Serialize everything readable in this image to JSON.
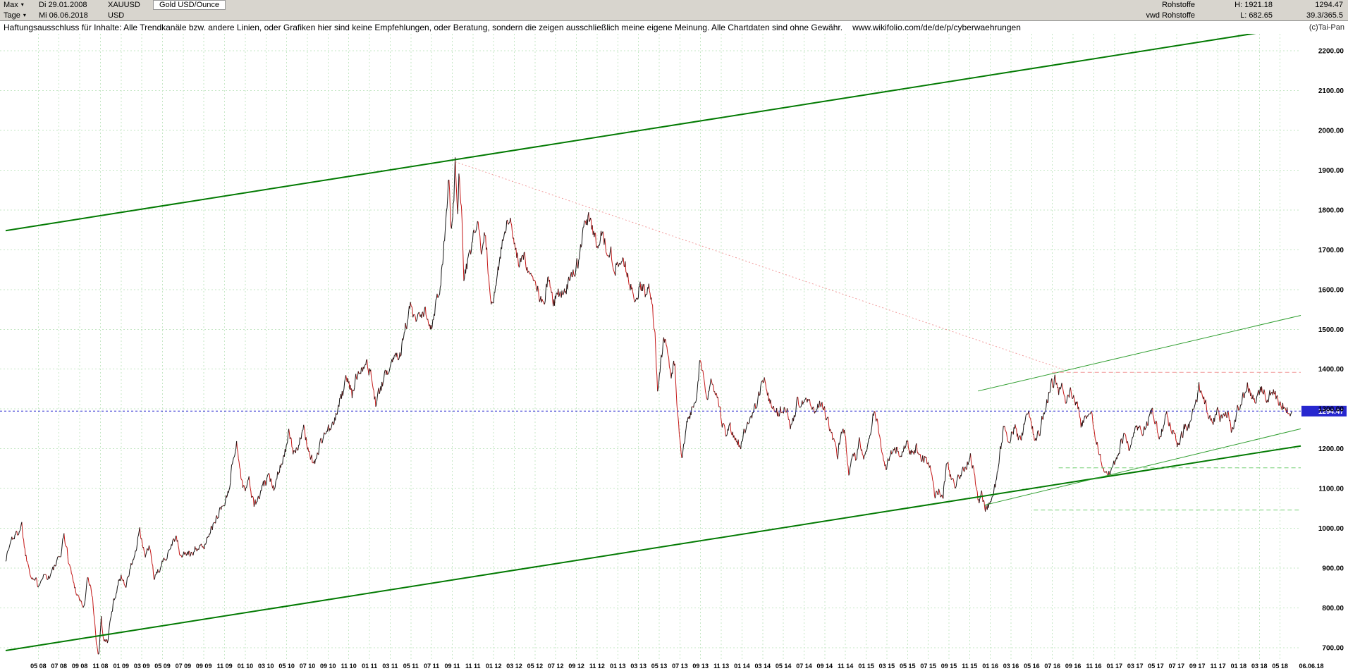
{
  "header": {
    "left": {
      "range_label": "Max",
      "period_label": "Tage",
      "date_from": "Di 29.01.2008",
      "date_to": "Mi 06.06.2018",
      "symbol": "XAUUSD",
      "currency": "USD",
      "instrument_name": "Gold USD/Ounce"
    },
    "right": {
      "category": "Rohstoffe",
      "source": "vwd Rohstoffe",
      "high_label": "H: 1921.18",
      "low_label": "L: 682.65",
      "last_price": "1294.47",
      "stat": "39.3/365.5"
    },
    "copyright": "(c)Tai-Pan"
  },
  "disclaimer": {
    "text": "Haftungsausschluss für Inhalte: Alle Trendkanäle bzw. andere Linien, oder Grafiken hier sind keine Empfehlungen, oder Beratung, sondern die zeigen ausschließlich meine eigene Meinung. Alle Chartdaten sind ohne Gewähr.",
    "url": "www.wikifolio.com/de/de/p/cyberwaehrungen"
  },
  "chart_data": {
    "type": "line",
    "title": "XAUUSD Gold USD/Ounce, Tageschart Max (29.01.2008 - 06.06.2018)",
    "xlabel": "",
    "ylabel": "USD",
    "grid": true,
    "x_range": [
      2008.07,
      2018.5
    ],
    "y_range": [
      670,
      2242
    ],
    "y_ticks": [
      700,
      800,
      900,
      1000,
      1100,
      1200,
      1300,
      1400,
      1500,
      1600,
      1700,
      1800,
      1900,
      2000,
      2100,
      2200
    ],
    "x_tick_labels": [
      "05 08",
      "07 08",
      "09 08",
      "11 08",
      "01 09",
      "03 09",
      "05 09",
      "07 09",
      "09 09",
      "11 09",
      "01 10",
      "03 10",
      "05 10",
      "07 10",
      "09 10",
      "11 10",
      "01 11",
      "03 11",
      "05 11",
      "07 11",
      "09 11",
      "11 11",
      "01 12",
      "03 12",
      "05 12",
      "07 12",
      "09 12",
      "11 12",
      "01 13",
      "03 13",
      "05 13",
      "07 13",
      "09 13",
      "11 13",
      "01 14",
      "03 14",
      "05 14",
      "07 14",
      "09 14",
      "11 14",
      "01 15",
      "03 15",
      "05 15",
      "07 15",
      "09 15",
      "11 15",
      "01 16",
      "03 16",
      "05 16",
      "07 16",
      "09 16",
      "11 16",
      "01 17",
      "03 17",
      "05 17",
      "07 17",
      "09 17",
      "11 17",
      "01 18",
      "03 18",
      "05 18",
      "06.06.18"
    ],
    "high": 1921.18,
    "low": 682.65,
    "current_price": 1294.47,
    "current_price_label": "1294.47",
    "colors": {
      "up": "#151515",
      "down": "#c41616",
      "grid": "#c5e7c5",
      "channel": "#027a02",
      "wedge": "#2f9e2f",
      "downtrend": "#f29b9b",
      "support": "#73cf73",
      "current": "#2727cf"
    },
    "trend_lines": [
      {
        "name": "channel-upper",
        "from": [
          2008.07,
          1748
        ],
        "to": [
          2018.5,
          2262
        ],
        "color_key": "channel",
        "width": 2
      },
      {
        "name": "channel-lower",
        "from": [
          2008.07,
          693
        ],
        "to": [
          2018.5,
          1207
        ],
        "color_key": "channel",
        "width": 2
      },
      {
        "name": "wedge-upper",
        "from": [
          2015.9,
          1345
        ],
        "to": [
          2018.5,
          1535
        ],
        "color_key": "wedge",
        "width": 1
      },
      {
        "name": "wedge-lower",
        "from": [
          2015.95,
          1058
        ],
        "to": [
          2018.5,
          1250
        ],
        "color_key": "wedge",
        "width": 1
      },
      {
        "name": "downtrend-dotted",
        "from": [
          2011.69,
          1921
        ],
        "to": [
          2016.6,
          1398
        ],
        "color_key": "downtrend",
        "width": 1,
        "dash": "2,3"
      },
      {
        "name": "resistance-dashed",
        "from": [
          2016.5,
          1392
        ],
        "to": [
          2018.5,
          1392
        ],
        "color_key": "downtrend",
        "width": 1,
        "dash": "6,4"
      },
      {
        "name": "support-dashed-1",
        "from": [
          2016.55,
          1152
        ],
        "to": [
          2018.5,
          1152
        ],
        "color_key": "support",
        "width": 1,
        "dash": "6,4"
      },
      {
        "name": "support-dashed-2",
        "from": [
          2016.35,
          1046
        ],
        "to": [
          2018.5,
          1046
        ],
        "color_key": "support",
        "width": 1,
        "dash": "6,4"
      }
    ],
    "series_points": [
      [
        2008.07,
        923
      ],
      [
        2008.12,
        975
      ],
      [
        2008.16,
        985
      ],
      [
        2008.2,
        1010
      ],
      [
        2008.23,
        935
      ],
      [
        2008.28,
        880
      ],
      [
        2008.33,
        860
      ],
      [
        2008.37,
        885
      ],
      [
        2008.42,
        878
      ],
      [
        2008.46,
        900
      ],
      [
        2008.51,
        930
      ],
      [
        2008.54,
        985
      ],
      [
        2008.58,
        915
      ],
      [
        2008.62,
        860
      ],
      [
        2008.65,
        833
      ],
      [
        2008.7,
        800
      ],
      [
        2008.73,
        875
      ],
      [
        2008.77,
        830
      ],
      [
        2008.8,
        715
      ],
      [
        2008.82,
        684
      ],
      [
        2008.84,
        775
      ],
      [
        2008.86,
        720
      ],
      [
        2008.89,
        713
      ],
      [
        2008.91,
        760
      ],
      [
        2008.94,
        815
      ],
      [
        2008.97,
        855
      ],
      [
        2009.0,
        880
      ],
      [
        2009.04,
        858
      ],
      [
        2009.08,
        905
      ],
      [
        2009.12,
        942
      ],
      [
        2009.15,
        992
      ],
      [
        2009.19,
        930
      ],
      [
        2009.23,
        952
      ],
      [
        2009.27,
        870
      ],
      [
        2009.32,
        905
      ],
      [
        2009.36,
        928
      ],
      [
        2009.4,
        958
      ],
      [
        2009.44,
        980
      ],
      [
        2009.48,
        928
      ],
      [
        2009.52,
        940
      ],
      [
        2009.56,
        932
      ],
      [
        2009.6,
        955
      ],
      [
        2009.64,
        948
      ],
      [
        2009.68,
        960
      ],
      [
        2009.71,
        995
      ],
      [
        2009.75,
        1008
      ],
      [
        2009.79,
        1045
      ],
      [
        2009.83,
        1060
      ],
      [
        2009.87,
        1105
      ],
      [
        2009.9,
        1170
      ],
      [
        2009.93,
        1218
      ],
      [
        2009.96,
        1140
      ],
      [
        2009.99,
        1095
      ],
      [
        2010.03,
        1120
      ],
      [
        2010.07,
        1058
      ],
      [
        2010.11,
        1075
      ],
      [
        2010.15,
        1110
      ],
      [
        2010.19,
        1125
      ],
      [
        2010.23,
        1105
      ],
      [
        2010.27,
        1150
      ],
      [
        2010.31,
        1180
      ],
      [
        2010.35,
        1235
      ],
      [
        2010.39,
        1188
      ],
      [
        2010.43,
        1215
      ],
      [
        2010.47,
        1245
      ],
      [
        2010.51,
        1200
      ],
      [
        2010.55,
        1160
      ],
      [
        2010.59,
        1195
      ],
      [
        2010.63,
        1235
      ],
      [
        2010.67,
        1248
      ],
      [
        2010.71,
        1255
      ],
      [
        2010.75,
        1310
      ],
      [
        2010.79,
        1345
      ],
      [
        2010.82,
        1380
      ],
      [
        2010.86,
        1335
      ],
      [
        2010.9,
        1385
      ],
      [
        2010.93,
        1405
      ],
      [
        2010.97,
        1420
      ],
      [
        2011.01,
        1388
      ],
      [
        2011.05,
        1315
      ],
      [
        2011.09,
        1350
      ],
      [
        2011.13,
        1385
      ],
      [
        2011.17,
        1420
      ],
      [
        2011.21,
        1435
      ],
      [
        2011.25,
        1445
      ],
      [
        2011.29,
        1505
      ],
      [
        2011.33,
        1555
      ],
      [
        2011.37,
        1515
      ],
      [
        2011.41,
        1528
      ],
      [
        2011.45,
        1540
      ],
      [
        2011.49,
        1495
      ],
      [
        2011.53,
        1560
      ],
      [
        2011.57,
        1610
      ],
      [
        2011.6,
        1715
      ],
      [
        2011.62,
        1795
      ],
      [
        2011.64,
        1880
      ],
      [
        2011.66,
        1745
      ],
      [
        2011.68,
        1830
      ],
      [
        2011.69,
        1921
      ],
      [
        2011.71,
        1775
      ],
      [
        2011.72,
        1870
      ],
      [
        2011.74,
        1815
      ],
      [
        2011.76,
        1615
      ],
      [
        2011.78,
        1655
      ],
      [
        2011.81,
        1680
      ],
      [
        2011.84,
        1745
      ],
      [
        2011.87,
        1765
      ],
      [
        2011.9,
        1690
      ],
      [
        2011.93,
        1748
      ],
      [
        2011.96,
        1640
      ],
      [
        2011.99,
        1550
      ],
      [
        2012.02,
        1625
      ],
      [
        2012.05,
        1680
      ],
      [
        2012.09,
        1745
      ],
      [
        2012.13,
        1780
      ],
      [
        2012.17,
        1700
      ],
      [
        2012.21,
        1660
      ],
      [
        2012.25,
        1685
      ],
      [
        2012.29,
        1640
      ],
      [
        2012.33,
        1620
      ],
      [
        2012.37,
        1585
      ],
      [
        2012.4,
        1555
      ],
      [
        2012.44,
        1625
      ],
      [
        2012.48,
        1565
      ],
      [
        2012.52,
        1590
      ],
      [
        2012.56,
        1600
      ],
      [
        2012.6,
        1612
      ],
      [
        2012.64,
        1640
      ],
      [
        2012.68,
        1672
      ],
      [
        2012.72,
        1745
      ],
      [
        2012.76,
        1780
      ],
      [
        2012.8,
        1745
      ],
      [
        2012.83,
        1710
      ],
      [
        2012.87,
        1752
      ],
      [
        2012.9,
        1712
      ],
      [
        2012.94,
        1695
      ],
      [
        2012.98,
        1655
      ],
      [
        2013.02,
        1682
      ],
      [
        2013.06,
        1662
      ],
      [
        2013.1,
        1605
      ],
      [
        2013.14,
        1575
      ],
      [
        2013.18,
        1612
      ],
      [
        2013.22,
        1590
      ],
      [
        2013.26,
        1602
      ],
      [
        2013.28,
        1555
      ],
      [
        2013.3,
        1480
      ],
      [
        2013.32,
        1357
      ],
      [
        2013.34,
        1402
      ],
      [
        2013.37,
        1468
      ],
      [
        2013.4,
        1445
      ],
      [
        2013.43,
        1390
      ],
      [
        2013.46,
        1412
      ],
      [
        2013.48,
        1295
      ],
      [
        2013.5,
        1225
      ],
      [
        2013.52,
        1180
      ],
      [
        2013.55,
        1252
      ],
      [
        2013.58,
        1285
      ],
      [
        2013.61,
        1312
      ],
      [
        2013.64,
        1348
      ],
      [
        2013.66,
        1422
      ],
      [
        2013.69,
        1388
      ],
      [
        2013.72,
        1322
      ],
      [
        2013.75,
        1365
      ],
      [
        2013.78,
        1328
      ],
      [
        2013.81,
        1318
      ],
      [
        2013.84,
        1268
      ],
      [
        2013.87,
        1245
      ],
      [
        2013.9,
        1258
      ],
      [
        2013.93,
        1232
      ],
      [
        2013.96,
        1224
      ],
      [
        2013.99,
        1200
      ],
      [
        2014.02,
        1242
      ],
      [
        2014.06,
        1258
      ],
      [
        2014.1,
        1302
      ],
      [
        2014.14,
        1332
      ],
      [
        2014.18,
        1380
      ],
      [
        2014.21,
        1335
      ],
      [
        2014.25,
        1295
      ],
      [
        2014.29,
        1288
      ],
      [
        2014.33,
        1302
      ],
      [
        2014.37,
        1288
      ],
      [
        2014.4,
        1252
      ],
      [
        2014.44,
        1315
      ],
      [
        2014.48,
        1322
      ],
      [
        2014.52,
        1338
      ],
      [
        2014.55,
        1305
      ],
      [
        2014.59,
        1295
      ],
      [
        2014.63,
        1312
      ],
      [
        2014.67,
        1288
      ],
      [
        2014.71,
        1255
      ],
      [
        2014.74,
        1215
      ],
      [
        2014.77,
        1188
      ],
      [
        2014.8,
        1248
      ],
      [
        2014.83,
        1232
      ],
      [
        2014.86,
        1142
      ],
      [
        2014.89,
        1198
      ],
      [
        2014.92,
        1175
      ],
      [
        2014.95,
        1222
      ],
      [
        2014.98,
        1185
      ],
      [
        2015.02,
        1222
      ],
      [
        2015.06,
        1292
      ],
      [
        2015.09,
        1262
      ],
      [
        2015.12,
        1212
      ],
      [
        2015.16,
        1152
      ],
      [
        2015.2,
        1192
      ],
      [
        2015.24,
        1202
      ],
      [
        2015.28,
        1182
      ],
      [
        2015.32,
        1222
      ],
      [
        2015.36,
        1192
      ],
      [
        2015.4,
        1205
      ],
      [
        2015.44,
        1182
      ],
      [
        2015.48,
        1172
      ],
      [
        2015.52,
        1158
      ],
      [
        2015.55,
        1085
      ],
      [
        2015.58,
        1095
      ],
      [
        2015.62,
        1088
      ],
      [
        2015.65,
        1162
      ],
      [
        2015.68,
        1135
      ],
      [
        2015.72,
        1108
      ],
      [
        2015.76,
        1142
      ],
      [
        2015.8,
        1155
      ],
      [
        2015.84,
        1182
      ],
      [
        2015.87,
        1142
      ],
      [
        2015.9,
        1068
      ],
      [
        2015.93,
        1082
      ],
      [
        2015.96,
        1052
      ],
      [
        2015.99,
        1062
      ],
      [
        2016.02,
        1092
      ],
      [
        2016.05,
        1118
      ],
      [
        2016.08,
        1200
      ],
      [
        2016.11,
        1252
      ],
      [
        2016.14,
        1212
      ],
      [
        2016.17,
        1240
      ],
      [
        2016.2,
        1258
      ],
      [
        2016.23,
        1222
      ],
      [
        2016.26,
        1235
      ],
      [
        2016.3,
        1292
      ],
      [
        2016.33,
        1262
      ],
      [
        2016.36,
        1215
      ],
      [
        2016.4,
        1248
      ],
      [
        2016.43,
        1292
      ],
      [
        2016.46,
        1322
      ],
      [
        2016.49,
        1358
      ],
      [
        2016.52,
        1375
      ],
      [
        2016.55,
        1342
      ],
      [
        2016.58,
        1352
      ],
      [
        2016.61,
        1312
      ],
      [
        2016.64,
        1342
      ],
      [
        2016.67,
        1328
      ],
      [
        2016.7,
        1315
      ],
      [
        2016.73,
        1258
      ],
      [
        2016.76,
        1272
      ],
      [
        2016.79,
        1302
      ],
      [
        2016.82,
        1282
      ],
      [
        2016.85,
        1228
      ],
      [
        2016.88,
        1178
      ],
      [
        2016.91,
        1162
      ],
      [
        2016.94,
        1132
      ],
      [
        2016.97,
        1152
      ],
      [
        2017.0,
        1162
      ],
      [
        2017.03,
        1188
      ],
      [
        2017.06,
        1222
      ],
      [
        2017.09,
        1242
      ],
      [
        2017.12,
        1202
      ],
      [
        2017.15,
        1238
      ],
      [
        2017.18,
        1255
      ],
      [
        2017.21,
        1242
      ],
      [
        2017.24,
        1252
      ],
      [
        2017.27,
        1272
      ],
      [
        2017.3,
        1292
      ],
      [
        2017.33,
        1265
      ],
      [
        2017.36,
        1225
      ],
      [
        2017.39,
        1262
      ],
      [
        2017.42,
        1282
      ],
      [
        2017.45,
        1255
      ],
      [
        2017.48,
        1242
      ],
      [
        2017.51,
        1212
      ],
      [
        2017.54,
        1232
      ],
      [
        2017.57,
        1258
      ],
      [
        2017.6,
        1262
      ],
      [
        2017.63,
        1288
      ],
      [
        2017.66,
        1318
      ],
      [
        2017.68,
        1352
      ],
      [
        2017.71,
        1330
      ],
      [
        2017.74,
        1305
      ],
      [
        2017.77,
        1282
      ],
      [
        2017.8,
        1272
      ],
      [
        2017.83,
        1292
      ],
      [
        2017.86,
        1276
      ],
      [
        2017.89,
        1296
      ],
      [
        2017.92,
        1282
      ],
      [
        2017.94,
        1252
      ],
      [
        2017.97,
        1272
      ],
      [
        2017.99,
        1302
      ],
      [
        2018.02,
        1322
      ],
      [
        2018.05,
        1345
      ],
      [
        2018.07,
        1358
      ],
      [
        2018.1,
        1330
      ],
      [
        2018.13,
        1320
      ],
      [
        2018.16,
        1332
      ],
      [
        2018.19,
        1352
      ],
      [
        2018.22,
        1325
      ],
      [
        2018.25,
        1336
      ],
      [
        2018.28,
        1346
      ],
      [
        2018.31,
        1322
      ],
      [
        2018.34,
        1302
      ],
      [
        2018.37,
        1312
      ],
      [
        2018.4,
        1298
      ],
      [
        2018.43,
        1294.47
      ]
    ]
  }
}
